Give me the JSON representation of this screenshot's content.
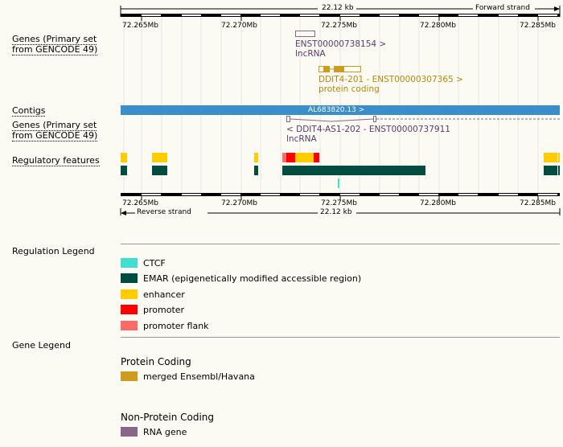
{
  "top_ruler": {
    "span": "22.12 kb",
    "strand": "Forward strand"
  },
  "bottom_ruler": {
    "span": "22.12 kb",
    "strand": "Reverse strand"
  },
  "ticks": [
    "72.265Mb",
    "72.270Mb",
    "72.275Mb",
    "72.280Mb",
    "72.285Mb"
  ],
  "tracks": {
    "genes_fwd": "Genes (Primary set from GENCODE 49)",
    "contigs": "Contigs",
    "genes_rev": "Genes (Primary set from GENCODE 49)",
    "regulatory": "Regulatory features"
  },
  "features": {
    "lnc1_id": "ENST00000738154 >",
    "lnc1_type": "lncRNA",
    "ddit4_id": "DDIT4-201 - ENST00000307365 >",
    "ddit4_type": "protein coding",
    "contig": "AL683820.13 >",
    "as1_id": "< DDIT4-AS1-202 - ENST00000737911",
    "as1_type": "lncRNA"
  },
  "regulation_legend": {
    "title": "Regulation Legend",
    "items": [
      {
        "label": "CTCF",
        "color": "#40e0d0"
      },
      {
        "label": "EMAR (epigenetically modified accessible region)",
        "color": "#004d40"
      },
      {
        "label": "enhancer",
        "color": "#ffcc00"
      },
      {
        "label": "promoter",
        "color": "#ff0000"
      },
      {
        "label": "promoter flank",
        "color": "#f86b69"
      }
    ]
  },
  "gene_legend": {
    "title": "Gene Legend",
    "protein_title": "Protein Coding",
    "protein_items": [
      {
        "label": "merged Ensembl/Havana",
        "color": "#cd9b1d"
      }
    ],
    "nonprotein_title": "Non-Protein Coding",
    "nonprotein_items": [
      {
        "label": "RNA gene",
        "color": "#8b668b"
      }
    ]
  },
  "colors": {
    "contig_blue": "#3a8ec9",
    "protein_gold": "#cd9b1d",
    "lnc_purple": "#5a3a6e",
    "lnc_box": "#8b668b",
    "emar": "#004d40",
    "enhancer": "#ffcc00",
    "promoter": "#ff0000",
    "promoter_flank": "#f86b69",
    "ctcf": "#40e0d0"
  }
}
